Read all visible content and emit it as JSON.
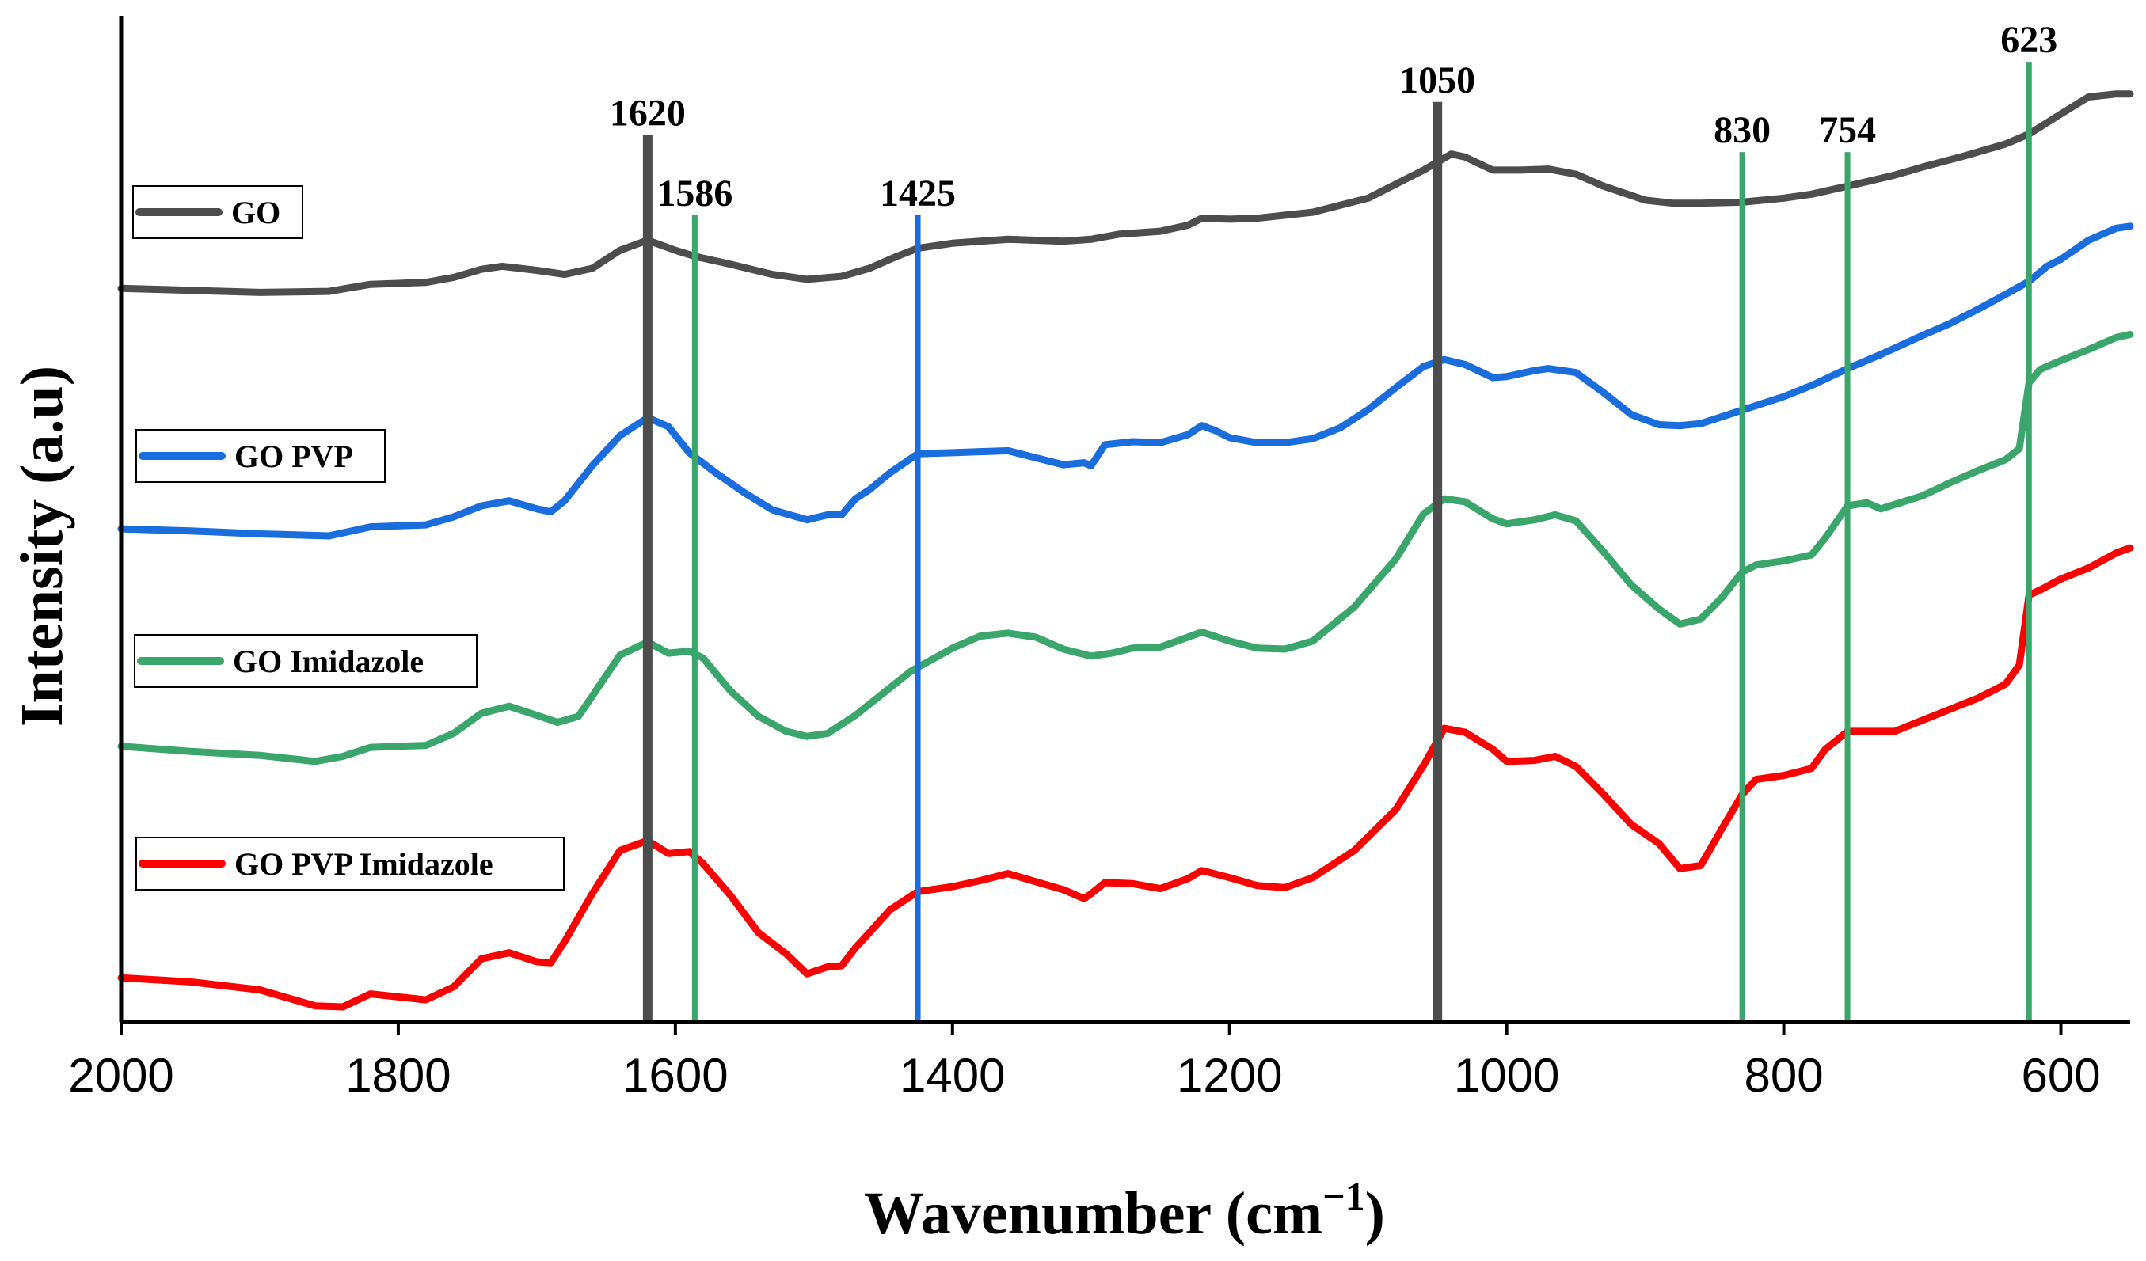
{
  "chart_data": {
    "type": "line",
    "title": "",
    "xlabel": "Wavenumber (cm",
    "xlabel_sup": "−1",
    "xlabel_close": ")",
    "ylabel": "Intensity (a.u)",
    "xlim": [
      2000,
      550
    ],
    "ylim": [
      0,
      100
    ],
    "x_ticks": [
      2000,
      1800,
      1600,
      1400,
      1200,
      1000,
      800,
      600
    ],
    "y_ticks": [],
    "grid": false,
    "legend_position": "left",
    "series": [
      {
        "name": "GO",
        "color": "#4d4d4d",
        "points": [
          [
            2000,
            73.2
          ],
          [
            1950,
            73.0
          ],
          [
            1900,
            72.8
          ],
          [
            1850,
            72.9
          ],
          [
            1820,
            73.6
          ],
          [
            1780,
            73.8
          ],
          [
            1760,
            74.3
          ],
          [
            1740,
            75.1
          ],
          [
            1725,
            75.4
          ],
          [
            1700,
            75.0
          ],
          [
            1680,
            74.6
          ],
          [
            1660,
            75.2
          ],
          [
            1640,
            77.0
          ],
          [
            1620,
            78.0
          ],
          [
            1600,
            77.0
          ],
          [
            1586,
            76.4
          ],
          [
            1560,
            75.6
          ],
          [
            1530,
            74.6
          ],
          [
            1505,
            74.1
          ],
          [
            1480,
            74.4
          ],
          [
            1460,
            75.2
          ],
          [
            1440,
            76.4
          ],
          [
            1425,
            77.2
          ],
          [
            1400,
            77.7
          ],
          [
            1360,
            78.1
          ],
          [
            1320,
            77.9
          ],
          [
            1300,
            78.1
          ],
          [
            1280,
            78.6
          ],
          [
            1250,
            78.9
          ],
          [
            1230,
            79.5
          ],
          [
            1220,
            80.2
          ],
          [
            1200,
            80.1
          ],
          [
            1180,
            80.2
          ],
          [
            1160,
            80.5
          ],
          [
            1140,
            80.8
          ],
          [
            1100,
            82.2
          ],
          [
            1080,
            83.6
          ],
          [
            1060,
            85.0
          ],
          [
            1050,
            85.8
          ],
          [
            1040,
            86.6
          ],
          [
            1030,
            86.3
          ],
          [
            1010,
            85.0
          ],
          [
            990,
            85.0
          ],
          [
            970,
            85.1
          ],
          [
            950,
            84.6
          ],
          [
            930,
            83.4
          ],
          [
            900,
            82.0
          ],
          [
            880,
            81.7
          ],
          [
            860,
            81.7
          ],
          [
            830,
            81.8
          ],
          [
            800,
            82.2
          ],
          [
            780,
            82.6
          ],
          [
            754,
            83.4
          ],
          [
            720,
            84.5
          ],
          [
            700,
            85.3
          ],
          [
            670,
            86.4
          ],
          [
            640,
            87.6
          ],
          [
            623,
            88.6
          ],
          [
            600,
            90.6
          ],
          [
            580,
            92.3
          ],
          [
            560,
            92.6
          ],
          [
            550,
            92.6
          ]
        ]
      },
      {
        "name": "GO PVP",
        "color": "#1a6ddc",
        "points": [
          [
            2000,
            49.2
          ],
          [
            1950,
            49.0
          ],
          [
            1900,
            48.7
          ],
          [
            1850,
            48.5
          ],
          [
            1820,
            49.4
          ],
          [
            1780,
            49.6
          ],
          [
            1760,
            50.4
          ],
          [
            1740,
            51.5
          ],
          [
            1720,
            52.0
          ],
          [
            1700,
            51.2
          ],
          [
            1690,
            50.9
          ],
          [
            1680,
            52.0
          ],
          [
            1660,
            55.5
          ],
          [
            1640,
            58.5
          ],
          [
            1620,
            60.3
          ],
          [
            1605,
            59.4
          ],
          [
            1590,
            56.8
          ],
          [
            1570,
            54.7
          ],
          [
            1550,
            52.8
          ],
          [
            1530,
            51.1
          ],
          [
            1505,
            50.1
          ],
          [
            1490,
            50.6
          ],
          [
            1480,
            50.6
          ],
          [
            1470,
            52.2
          ],
          [
            1460,
            53.1
          ],
          [
            1445,
            54.8
          ],
          [
            1425,
            56.7
          ],
          [
            1400,
            56.8
          ],
          [
            1380,
            56.9
          ],
          [
            1360,
            57.0
          ],
          [
            1340,
            56.3
          ],
          [
            1320,
            55.6
          ],
          [
            1305,
            55.8
          ],
          [
            1300,
            55.5
          ],
          [
            1290,
            57.6
          ],
          [
            1270,
            57.9
          ],
          [
            1250,
            57.8
          ],
          [
            1230,
            58.6
          ],
          [
            1220,
            59.5
          ],
          [
            1210,
            59.0
          ],
          [
            1200,
            58.3
          ],
          [
            1180,
            57.8
          ],
          [
            1160,
            57.8
          ],
          [
            1140,
            58.2
          ],
          [
            1120,
            59.3
          ],
          [
            1100,
            61.1
          ],
          [
            1080,
            63.3
          ],
          [
            1060,
            65.4
          ],
          [
            1045,
            66.1
          ],
          [
            1030,
            65.6
          ],
          [
            1010,
            64.3
          ],
          [
            1000,
            64.4
          ],
          [
            980,
            65.0
          ],
          [
            970,
            65.2
          ],
          [
            950,
            64.8
          ],
          [
            930,
            62.8
          ],
          [
            910,
            60.6
          ],
          [
            890,
            59.6
          ],
          [
            875,
            59.5
          ],
          [
            860,
            59.7
          ],
          [
            840,
            60.6
          ],
          [
            820,
            61.5
          ],
          [
            800,
            62.4
          ],
          [
            780,
            63.5
          ],
          [
            754,
            65.2
          ],
          [
            730,
            66.6
          ],
          [
            700,
            68.5
          ],
          [
            680,
            69.7
          ],
          [
            660,
            71.1
          ],
          [
            640,
            72.6
          ],
          [
            623,
            73.9
          ],
          [
            610,
            75.4
          ],
          [
            600,
            76.1
          ],
          [
            580,
            78.0
          ],
          [
            560,
            79.2
          ],
          [
            550,
            79.4
          ]
        ]
      },
      {
        "name": "GO Imidazole",
        "color": "#3aa66c",
        "points": [
          [
            2000,
            27.5
          ],
          [
            1950,
            27.0
          ],
          [
            1900,
            26.6
          ],
          [
            1860,
            26.0
          ],
          [
            1840,
            26.5
          ],
          [
            1820,
            27.4
          ],
          [
            1780,
            27.6
          ],
          [
            1760,
            28.8
          ],
          [
            1740,
            30.8
          ],
          [
            1720,
            31.5
          ],
          [
            1700,
            30.6
          ],
          [
            1685,
            29.9
          ],
          [
            1670,
            30.5
          ],
          [
            1660,
            32.5
          ],
          [
            1640,
            36.6
          ],
          [
            1620,
            37.9
          ],
          [
            1605,
            36.8
          ],
          [
            1590,
            37.0
          ],
          [
            1580,
            36.3
          ],
          [
            1560,
            33.0
          ],
          [
            1540,
            30.5
          ],
          [
            1520,
            29.0
          ],
          [
            1505,
            28.5
          ],
          [
            1490,
            28.8
          ],
          [
            1470,
            30.6
          ],
          [
            1450,
            32.8
          ],
          [
            1430,
            35.0
          ],
          [
            1400,
            37.3
          ],
          [
            1380,
            38.5
          ],
          [
            1360,
            38.8
          ],
          [
            1340,
            38.4
          ],
          [
            1320,
            37.2
          ],
          [
            1300,
            36.5
          ],
          [
            1285,
            36.8
          ],
          [
            1270,
            37.3
          ],
          [
            1250,
            37.4
          ],
          [
            1230,
            38.4
          ],
          [
            1220,
            38.9
          ],
          [
            1200,
            38.0
          ],
          [
            1180,
            37.3
          ],
          [
            1160,
            37.2
          ],
          [
            1140,
            38.0
          ],
          [
            1110,
            41.4
          ],
          [
            1080,
            46.2
          ],
          [
            1060,
            50.7
          ],
          [
            1045,
            52.2
          ],
          [
            1030,
            51.9
          ],
          [
            1010,
            50.2
          ],
          [
            1000,
            49.7
          ],
          [
            980,
            50.1
          ],
          [
            965,
            50.6
          ],
          [
            950,
            50.0
          ],
          [
            930,
            46.9
          ],
          [
            910,
            43.6
          ],
          [
            890,
            41.2
          ],
          [
            875,
            39.7
          ],
          [
            860,
            40.2
          ],
          [
            845,
            42.3
          ],
          [
            830,
            44.9
          ],
          [
            820,
            45.6
          ],
          [
            800,
            46.0
          ],
          [
            780,
            46.6
          ],
          [
            770,
            48.3
          ],
          [
            754,
            51.5
          ],
          [
            740,
            51.8
          ],
          [
            730,
            51.2
          ],
          [
            700,
            52.5
          ],
          [
            680,
            53.8
          ],
          [
            660,
            55.0
          ],
          [
            640,
            56.1
          ],
          [
            630,
            57.2
          ],
          [
            623,
            63.8
          ],
          [
            615,
            65.1
          ],
          [
            600,
            66.0
          ],
          [
            580,
            67.1
          ],
          [
            560,
            68.3
          ],
          [
            550,
            68.6
          ]
        ]
      },
      {
        "name": "GO PVP Imidazole",
        "color": "#ff0000",
        "points": [
          [
            2000,
            4.4
          ],
          [
            1950,
            4.0
          ],
          [
            1900,
            3.2
          ],
          [
            1860,
            1.6
          ],
          [
            1840,
            1.5
          ],
          [
            1820,
            2.8
          ],
          [
            1780,
            2.2
          ],
          [
            1760,
            3.5
          ],
          [
            1740,
            6.3
          ],
          [
            1720,
            6.9
          ],
          [
            1700,
            6.0
          ],
          [
            1690,
            5.9
          ],
          [
            1680,
            8.0
          ],
          [
            1660,
            12.8
          ],
          [
            1640,
            17.1
          ],
          [
            1620,
            18.1
          ],
          [
            1605,
            16.8
          ],
          [
            1590,
            17.0
          ],
          [
            1580,
            15.8
          ],
          [
            1560,
            12.6
          ],
          [
            1540,
            8.9
          ],
          [
            1520,
            6.8
          ],
          [
            1505,
            4.8
          ],
          [
            1490,
            5.5
          ],
          [
            1480,
            5.6
          ],
          [
            1470,
            7.4
          ],
          [
            1460,
            8.9
          ],
          [
            1445,
            11.2
          ],
          [
            1425,
            13.0
          ],
          [
            1400,
            13.5
          ],
          [
            1380,
            14.1
          ],
          [
            1360,
            14.8
          ],
          [
            1340,
            14.0
          ],
          [
            1320,
            13.2
          ],
          [
            1305,
            12.3
          ],
          [
            1300,
            12.8
          ],
          [
            1290,
            13.9
          ],
          [
            1270,
            13.8
          ],
          [
            1250,
            13.3
          ],
          [
            1230,
            14.3
          ],
          [
            1220,
            15.1
          ],
          [
            1200,
            14.4
          ],
          [
            1180,
            13.6
          ],
          [
            1160,
            13.4
          ],
          [
            1140,
            14.4
          ],
          [
            1110,
            17.1
          ],
          [
            1080,
            21.2
          ],
          [
            1060,
            25.6
          ],
          [
            1045,
            29.3
          ],
          [
            1030,
            28.9
          ],
          [
            1010,
            27.2
          ],
          [
            1000,
            26.0
          ],
          [
            980,
            26.1
          ],
          [
            965,
            26.5
          ],
          [
            950,
            25.5
          ],
          [
            930,
            22.7
          ],
          [
            910,
            19.7
          ],
          [
            890,
            17.8
          ],
          [
            875,
            15.3
          ],
          [
            860,
            15.6
          ],
          [
            845,
            19.2
          ],
          [
            830,
            22.7
          ],
          [
            820,
            24.2
          ],
          [
            800,
            24.6
          ],
          [
            780,
            25.3
          ],
          [
            770,
            27.2
          ],
          [
            754,
            29.0
          ],
          [
            740,
            29.0
          ],
          [
            720,
            29.0
          ],
          [
            700,
            30.1
          ],
          [
            680,
            31.2
          ],
          [
            660,
            32.3
          ],
          [
            640,
            33.7
          ],
          [
            630,
            35.6
          ],
          [
            623,
            42.6
          ],
          [
            615,
            43.1
          ],
          [
            600,
            44.2
          ],
          [
            580,
            45.3
          ],
          [
            560,
            46.8
          ],
          [
            550,
            47.3
          ]
        ]
      }
    ],
    "annotations": [
      {
        "label": "1620",
        "x": 1620,
        "color": "#4d4d4d",
        "top": 88.5
      },
      {
        "label": "1586",
        "x": 1586,
        "color": "#3aa66c",
        "top": 80.5
      },
      {
        "label": "1425",
        "x": 1425,
        "color": "#1a6ddc",
        "top": 80.5
      },
      {
        "label": "1050",
        "x": 1050,
        "color": "#4d4d4d",
        "top": 91.8
      },
      {
        "label": "830",
        "x": 830,
        "color": "#3aa66c",
        "top": 86.8
      },
      {
        "label": "754",
        "x": 754,
        "color": "#3aa66c",
        "top": 86.8
      },
      {
        "label": "623",
        "x": 623,
        "color": "#3aa66c",
        "top": 95.8
      }
    ]
  }
}
